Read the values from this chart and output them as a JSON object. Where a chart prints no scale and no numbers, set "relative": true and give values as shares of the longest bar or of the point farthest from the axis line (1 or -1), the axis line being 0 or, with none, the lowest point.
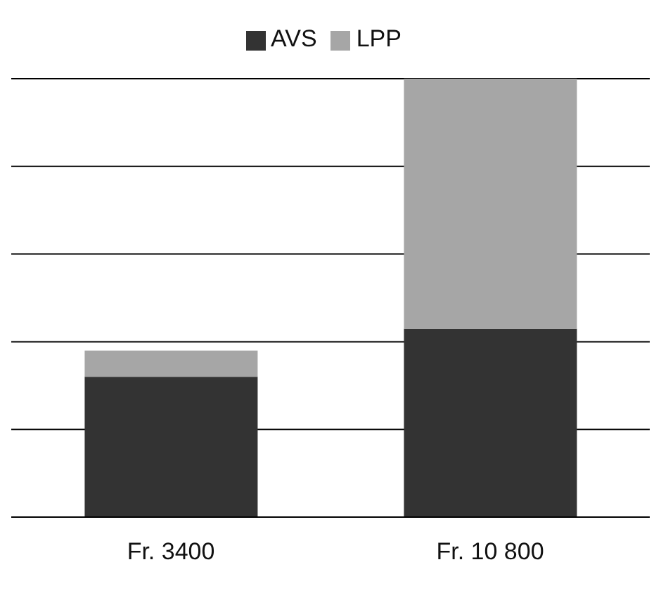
{
  "chart_data": {
    "type": "bar",
    "stacked": true,
    "relative": true,
    "categories": [
      "Fr. 3400",
      "Fr. 10 800"
    ],
    "series": [
      {
        "name": "AVS",
        "color": "#333333",
        "values": [
          0.32,
          0.43
        ]
      },
      {
        "name": "LPP",
        "color": "#a6a6a6",
        "values": [
          0.06,
          0.57
        ]
      }
    ],
    "grid": "y",
    "legend": "top"
  }
}
